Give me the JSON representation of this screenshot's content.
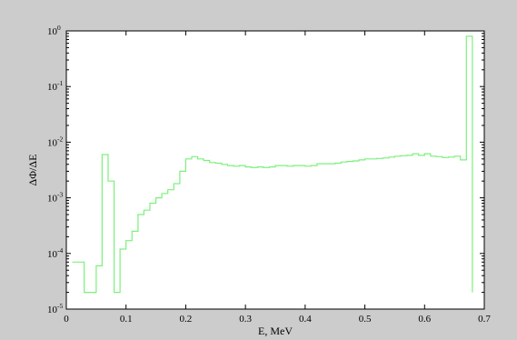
{
  "chart_data": {
    "type": "line",
    "step": true,
    "title": "",
    "xlabel": "E, MeV",
    "ylabel": "ΔΦ/ΔE",
    "xlim": [
      0,
      0.7
    ],
    "ylim": [
      1e-05,
      1
    ],
    "yscale": "log",
    "grid": false,
    "x_ticks": [
      "0",
      "0.1",
      "0.2",
      "0.3",
      "0.4",
      "0.5",
      "0.6",
      "0.7"
    ],
    "y_ticks": [
      {
        "base": "10",
        "exp": "-5"
      },
      {
        "base": "10",
        "exp": "-4"
      },
      {
        "base": "10",
        "exp": "-3"
      },
      {
        "base": "10",
        "exp": "-2"
      },
      {
        "base": "10",
        "exp": "-1"
      },
      {
        "base": "10",
        "exp": "0"
      }
    ],
    "colors": {
      "line": "#7cf07c",
      "figure_bg": "#cccccc",
      "axes_bg": "#ffffff"
    },
    "series": [
      {
        "x": [
          0.01,
          0.02,
          0.03,
          0.04,
          0.05,
          0.06,
          0.07,
          0.08,
          0.09,
          0.1,
          0.11,
          0.12,
          0.13,
          0.14,
          0.15,
          0.16,
          0.17,
          0.18,
          0.19,
          0.2,
          0.21,
          0.22,
          0.23,
          0.24,
          0.25,
          0.26,
          0.27,
          0.28,
          0.29,
          0.3,
          0.31,
          0.32,
          0.33,
          0.34,
          0.35,
          0.36,
          0.37,
          0.38,
          0.39,
          0.4,
          0.41,
          0.42,
          0.43,
          0.44,
          0.45,
          0.46,
          0.47,
          0.48,
          0.49,
          0.5,
          0.51,
          0.52,
          0.53,
          0.54,
          0.55,
          0.56,
          0.57,
          0.58,
          0.59,
          0.6,
          0.61,
          0.62,
          0.63,
          0.64,
          0.65,
          0.66,
          0.67,
          0.68
        ],
        "y": [
          7e-05,
          7e-05,
          2e-05,
          2e-05,
          6e-05,
          0.006,
          0.002,
          2e-05,
          0.00012,
          0.00017,
          0.00025,
          0.0005,
          0.0006,
          0.0008,
          0.001,
          0.0012,
          0.0014,
          0.0018,
          0.003,
          0.005,
          0.0055,
          0.005,
          0.0047,
          0.0043,
          0.0042,
          0.004,
          0.0038,
          0.0037,
          0.0038,
          0.0036,
          0.0035,
          0.0036,
          0.0035,
          0.0036,
          0.0038,
          0.0038,
          0.0037,
          0.0038,
          0.0038,
          0.0037,
          0.0038,
          0.0041,
          0.0041,
          0.0041,
          0.0042,
          0.0044,
          0.0045,
          0.0046,
          0.0048,
          0.005,
          0.005,
          0.0051,
          0.0052,
          0.0054,
          0.0056,
          0.0057,
          0.0058,
          0.0062,
          0.0058,
          0.0062,
          0.0056,
          0.0055,
          0.0053,
          0.0054,
          0.0056,
          0.0048,
          0.8,
          2e-05
        ]
      }
    ]
  }
}
